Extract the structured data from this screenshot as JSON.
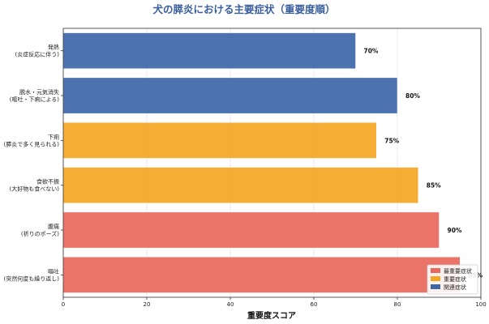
{
  "chart_data": {
    "type": "bar",
    "orientation": "horizontal",
    "title": "犬の膵炎における主要症状（重要度順）",
    "xlabel": "重要度スコア",
    "ylabel": "",
    "xlim": [
      0,
      100
    ],
    "xticks": [
      "0",
      "20",
      "40",
      "60",
      "80",
      "100"
    ],
    "grid": "vertical",
    "categories": [
      [
        "発熱",
        "(炎症反応に伴う)"
      ],
      [
        "脱水・元気消失",
        "(嘔吐・下痢による)"
      ],
      [
        "下痢",
        "(膵炎で多く見られる)"
      ],
      [
        "食欲不振",
        "(大好物も食べない)"
      ],
      [
        "腹痛",
        "(祈りのポーズ)"
      ],
      [
        "嘔吐",
        "(突然何度も繰り返し)"
      ]
    ],
    "values": [
      70,
      80,
      75,
      85,
      90,
      95
    ],
    "value_labels": [
      "70%",
      "80%",
      "75%",
      "85%",
      "90%",
      "95%"
    ],
    "bar_groups": [
      "related",
      "related",
      "important",
      "important",
      "most",
      "most"
    ],
    "legend": {
      "placement": "lower-right",
      "entries": [
        {
          "key": "most",
          "label": "最重要症状",
          "color": "#e8685b"
        },
        {
          "key": "important",
          "label": "重要症状",
          "color": "#f5a623"
        },
        {
          "key": "related",
          "label": "関連症状",
          "color": "#3d66a8"
        }
      ]
    }
  }
}
